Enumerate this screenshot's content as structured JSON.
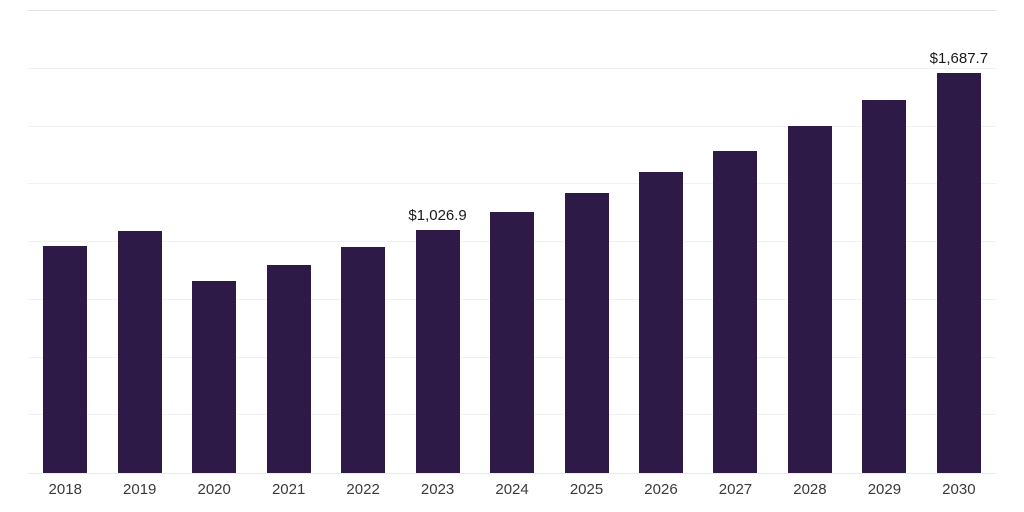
{
  "chart": {
    "background": "#ffffff",
    "accent_color": "#2e1a47",
    "gridline_color": "#f2f0f5"
  },
  "chart_data": {
    "type": "bar",
    "title": "",
    "xlabel": "",
    "ylabel": "",
    "categories": [
      "2018",
      "2019",
      "2020",
      "2021",
      "2022",
      "2023",
      "2024",
      "2025",
      "2026",
      "2027",
      "2028",
      "2029",
      "2030"
    ],
    "values": [
      960,
      1020,
      810,
      880,
      955,
      1026.9,
      1100,
      1180,
      1270,
      1360,
      1465,
      1575,
      1687.7
    ],
    "annotations": [
      {
        "category": "2023",
        "text": "$1,026.9"
      },
      {
        "category": "2030",
        "text": "$1,687.7"
      }
    ],
    "ylim": [
      0,
      1950
    ],
    "grid": true,
    "legend": false,
    "bar_color": "#2e1a47"
  }
}
